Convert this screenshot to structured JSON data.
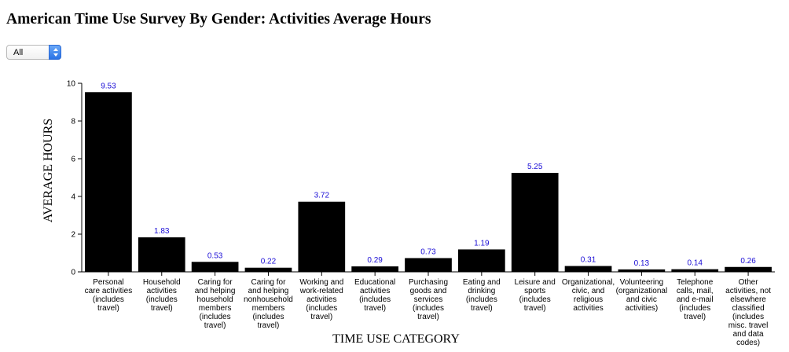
{
  "page": {
    "title": "American Time Use Survey By Gender: Activities Average Hours"
  },
  "filter": {
    "selected": "All"
  },
  "chart_data": {
    "type": "bar",
    "title": "",
    "xlabel": "TIME USE CATEGORY",
    "ylabel": "AVERAGE HOURS",
    "ylim": [
      0,
      10
    ],
    "yticks": [
      "0",
      "2",
      "4",
      "6",
      "8",
      "10"
    ],
    "grid": false,
    "bar_color": "#000000",
    "label_color": "#1a0dd6",
    "categories": [
      [
        "Personal",
        "care activities",
        "(includes",
        "travel)"
      ],
      [
        "Household",
        "activities",
        "(includes",
        "travel)"
      ],
      [
        "Caring for",
        "and helping",
        "household",
        "members",
        "(includes",
        "travel)"
      ],
      [
        "Caring for",
        "and helping",
        "nonhousehold",
        "members",
        "(includes",
        "travel)"
      ],
      [
        "Working and",
        "work-related",
        "activities",
        "(includes",
        "travel)"
      ],
      [
        "Educational",
        "activities",
        "(includes",
        "travel)"
      ],
      [
        "Purchasing",
        "goods and",
        "services",
        "(includes",
        "travel)"
      ],
      [
        "Eating and",
        "drinking",
        "(includes",
        "travel)"
      ],
      [
        "Leisure and",
        "sports",
        "(includes",
        "travel)"
      ],
      [
        "Organizational,",
        "civic, and",
        "religious",
        "activities"
      ],
      [
        "Volunteering",
        "(organizational",
        "and civic",
        "activities)"
      ],
      [
        "Telephone",
        "calls, mail,",
        "and e-mail",
        "(includes",
        "travel)"
      ],
      [
        "Other",
        "activities, not",
        "elsewhere",
        "classified",
        "(includes",
        "misc. travel",
        "and data",
        "codes)"
      ]
    ],
    "values": [
      9.53,
      1.83,
      0.53,
      0.22,
      3.72,
      0.29,
      0.73,
      1.19,
      5.25,
      0.31,
      0.13,
      0.14,
      0.26
    ],
    "value_labels": [
      "9.53",
      "1.83",
      "0.53",
      "0.22",
      "3.72",
      "0.29",
      "0.73",
      "1.19",
      "5.25",
      "0.31",
      "0.13",
      "0.14",
      "0.26"
    ]
  }
}
